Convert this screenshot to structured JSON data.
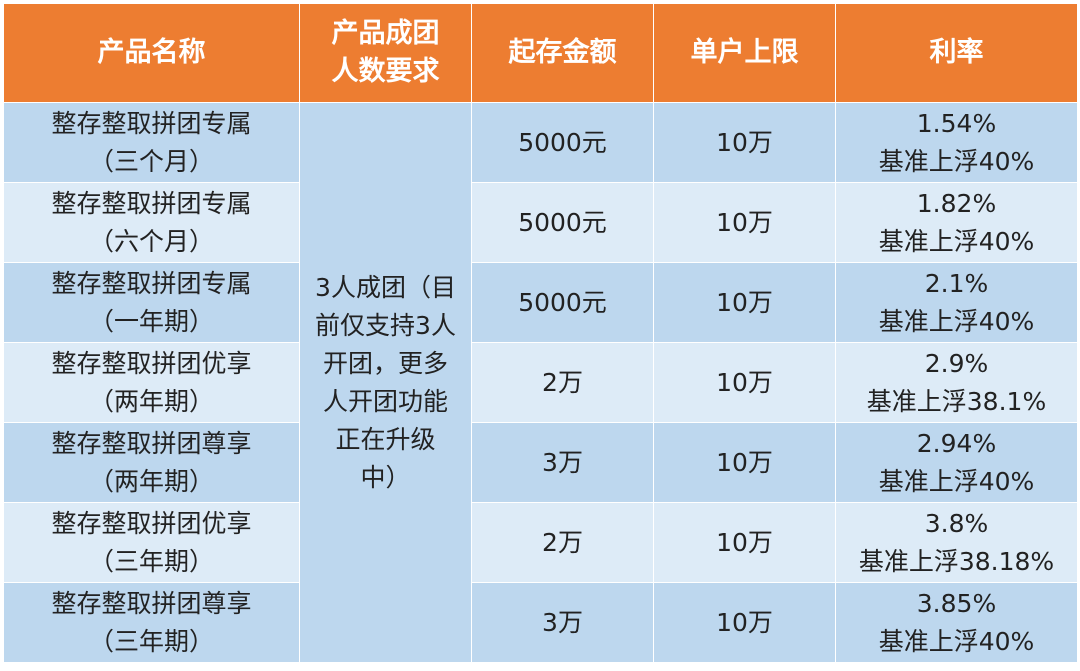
{
  "table": {
    "headers": [
      {
        "key": "name",
        "lines": [
          "产品名称"
        ]
      },
      {
        "key": "group_size",
        "lines": [
          "产品成团",
          "人数要求"
        ]
      },
      {
        "key": "min_deposit",
        "lines": [
          "起存金额"
        ]
      },
      {
        "key": "limit",
        "lines": [
          "单户上限"
        ]
      },
      {
        "key": "rate",
        "lines": [
          "利率"
        ]
      }
    ],
    "group_requirement": [
      "3人成团（目",
      "前仅支持3人",
      "开团，更多",
      "人开团功能",
      "正在升级",
      "中）"
    ],
    "rows": [
      {
        "name": [
          "整存整取拼团专属",
          "（三个月）"
        ],
        "min_deposit": "5000元",
        "limit": "10万",
        "rate": [
          "1.54%",
          "基准上浮40%"
        ]
      },
      {
        "name": [
          "整存整取拼团专属",
          "（六个月）"
        ],
        "min_deposit": "5000元",
        "limit": "10万",
        "rate": [
          "1.82%",
          "基准上浮40%"
        ]
      },
      {
        "name": [
          "整存整取拼团专属",
          "（一年期）"
        ],
        "min_deposit": "5000元",
        "limit": "10万",
        "rate": [
          "2.1%",
          "基准上浮40%"
        ]
      },
      {
        "name": [
          "整存整取拼团优享",
          "（两年期）"
        ],
        "min_deposit": "2万",
        "limit": "10万",
        "rate": [
          "2.9%",
          "基准上浮38.1%"
        ]
      },
      {
        "name": [
          "整存整取拼团尊享",
          "（两年期）"
        ],
        "min_deposit": "3万",
        "limit": "10万",
        "rate": [
          "2.94%",
          "基准上浮40%"
        ]
      },
      {
        "name": [
          "整存整取拼团优享",
          "（三年期）"
        ],
        "min_deposit": "2万",
        "limit": "10万",
        "rate": [
          "3.8%",
          "基准上浮38.18%"
        ]
      },
      {
        "name": [
          "整存整取拼团尊享",
          "（三年期）"
        ],
        "min_deposit": "3万",
        "limit": "10万",
        "rate": [
          "3.85%",
          "基准上浮40%"
        ]
      }
    ]
  },
  "colors": {
    "header_bg": "#ed7d31",
    "row_odd_bg": "#bdd7ee",
    "row_even_bg": "#ddebf7",
    "header_text": "#ffffff",
    "body_text": "#222222"
  }
}
